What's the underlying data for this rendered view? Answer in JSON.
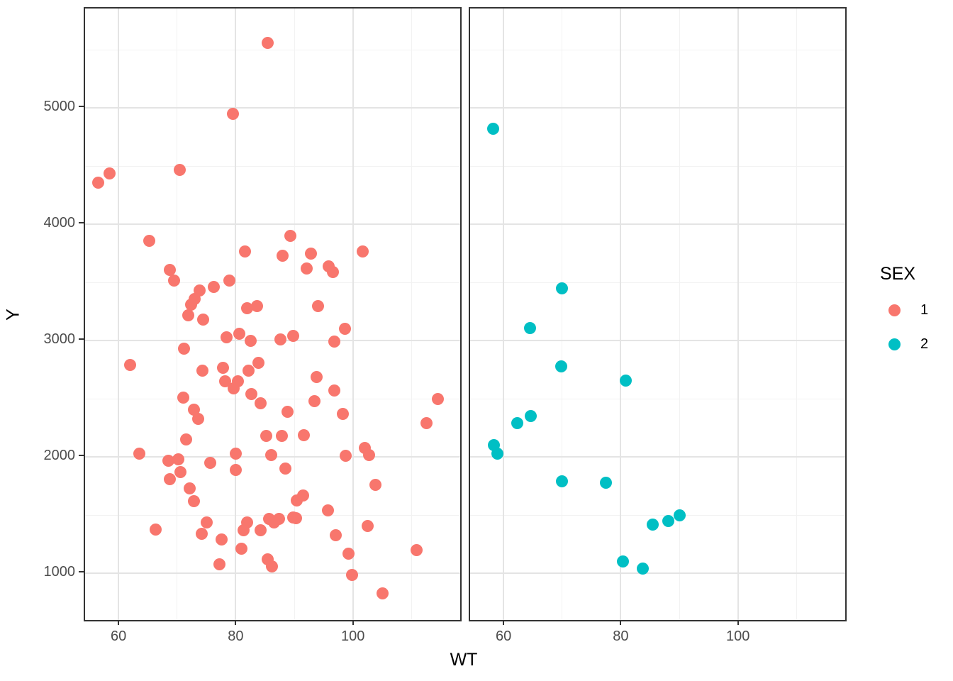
{
  "chart_data": {
    "type": "scatter",
    "facet_by": "SEX",
    "xlabel": "WT",
    "ylabel": "Y",
    "xlim": [
      54.3,
      118.3
    ],
    "ylim": [
      600,
      5855
    ],
    "x_ticks": [
      60,
      80,
      100
    ],
    "x_minor_ticks": [
      70,
      90,
      110
    ],
    "y_ticks": [
      1000,
      2000,
      3000,
      4000,
      5000
    ],
    "y_minor_ticks": [
      1500,
      2500,
      3500,
      4500,
      5500
    ],
    "grid": true,
    "panel_border_color": "#333333",
    "major_grid_color": "#e4e4e4",
    "minor_grid_color": "#f2f2f2",
    "tick_label_color": "#4d4d4d",
    "legend": {
      "title": "SEX",
      "position": "right",
      "entries": [
        {
          "label": "1",
          "color": "#F8766D"
        },
        {
          "label": "2",
          "color": "#00BFC4"
        }
      ]
    },
    "series": [
      {
        "name": "1",
        "color": "#F8766D",
        "facet": 0,
        "points": [
          [
            85.4,
            5560
          ],
          [
            79.5,
            4950
          ],
          [
            70.4,
            4470
          ],
          [
            58.5,
            4440
          ],
          [
            56.5,
            4360
          ],
          [
            65.3,
            3860
          ],
          [
            89.3,
            3900
          ],
          [
            81.6,
            3770
          ],
          [
            101.7,
            3770
          ],
          [
            88.0,
            3730
          ],
          [
            92.8,
            3750
          ],
          [
            92.1,
            3620
          ],
          [
            95.9,
            3640
          ],
          [
            96.6,
            3590
          ],
          [
            68.8,
            3610
          ],
          [
            69.5,
            3520
          ],
          [
            78.9,
            3520
          ],
          [
            76.2,
            3460
          ],
          [
            73.8,
            3430
          ],
          [
            73.0,
            3360
          ],
          [
            72.4,
            3310
          ],
          [
            82.0,
            3280
          ],
          [
            83.6,
            3300
          ],
          [
            94.0,
            3300
          ],
          [
            71.9,
            3220
          ],
          [
            74.4,
            3180
          ],
          [
            98.6,
            3100
          ],
          [
            78.4,
            3030
          ],
          [
            80.6,
            3060
          ],
          [
            82.5,
            3000
          ],
          [
            87.6,
            3010
          ],
          [
            89.8,
            3040
          ],
          [
            96.8,
            2990
          ],
          [
            71.2,
            2930
          ],
          [
            62.0,
            2790
          ],
          [
            74.3,
            2740
          ],
          [
            77.8,
            2770
          ],
          [
            83.9,
            2810
          ],
          [
            82.2,
            2740
          ],
          [
            78.2,
            2650
          ],
          [
            79.7,
            2590
          ],
          [
            80.4,
            2650
          ],
          [
            93.8,
            2690
          ],
          [
            96.8,
            2570
          ],
          [
            71.1,
            2510
          ],
          [
            82.7,
            2540
          ],
          [
            84.2,
            2460
          ],
          [
            72.9,
            2410
          ],
          [
            73.6,
            2330
          ],
          [
            93.4,
            2480
          ],
          [
            88.8,
            2390
          ],
          [
            98.3,
            2370
          ],
          [
            114.5,
            2500
          ],
          [
            112.5,
            2290
          ],
          [
            85.2,
            2180
          ],
          [
            87.9,
            2180
          ],
          [
            91.6,
            2190
          ],
          [
            71.6,
            2150
          ],
          [
            63.6,
            2030
          ],
          [
            68.5,
            1970
          ],
          [
            70.2,
            1980
          ],
          [
            70.6,
            1870
          ],
          [
            68.8,
            1810
          ],
          [
            75.6,
            1950
          ],
          [
            80.0,
            2030
          ],
          [
            80.0,
            1890
          ],
          [
            86.0,
            2020
          ],
          [
            88.5,
            1900
          ],
          [
            98.8,
            2010
          ],
          [
            102.0,
            2080
          ],
          [
            102.7,
            2020
          ],
          [
            72.1,
            1730
          ],
          [
            72.9,
            1620
          ],
          [
            90.4,
            1630
          ],
          [
            91.5,
            1670
          ],
          [
            95.7,
            1540
          ],
          [
            103.8,
            1760
          ],
          [
            66.3,
            1380
          ],
          [
            75.1,
            1440
          ],
          [
            74.2,
            1340
          ],
          [
            77.6,
            1290
          ],
          [
            81.0,
            1210
          ],
          [
            82.0,
            1440
          ],
          [
            81.3,
            1370
          ],
          [
            84.2,
            1370
          ],
          [
            85.7,
            1470
          ],
          [
            86.5,
            1440
          ],
          [
            87.4,
            1470
          ],
          [
            89.8,
            1480
          ],
          [
            90.3,
            1475
          ],
          [
            97.1,
            1330
          ],
          [
            102.5,
            1410
          ],
          [
            77.2,
            1080
          ],
          [
            85.4,
            1120
          ],
          [
            86.2,
            1060
          ],
          [
            99.3,
            1170
          ],
          [
            99.8,
            990
          ],
          [
            110.9,
            1200
          ],
          [
            105.0,
            830
          ]
        ]
      },
      {
        "name": "2",
        "color": "#00BFC4",
        "facet": 1,
        "points": [
          [
            58.2,
            4820
          ],
          [
            70.0,
            3450
          ],
          [
            64.5,
            3110
          ],
          [
            69.8,
            2780
          ],
          [
            80.8,
            2660
          ],
          [
            64.7,
            2350
          ],
          [
            62.4,
            2290
          ],
          [
            58.3,
            2100
          ],
          [
            59.0,
            2030
          ],
          [
            70.0,
            1790
          ],
          [
            77.5,
            1780
          ],
          [
            85.4,
            1420
          ],
          [
            88.1,
            1450
          ],
          [
            90.1,
            1500
          ],
          [
            80.4,
            1100
          ],
          [
            83.7,
            1040
          ]
        ]
      }
    ]
  }
}
